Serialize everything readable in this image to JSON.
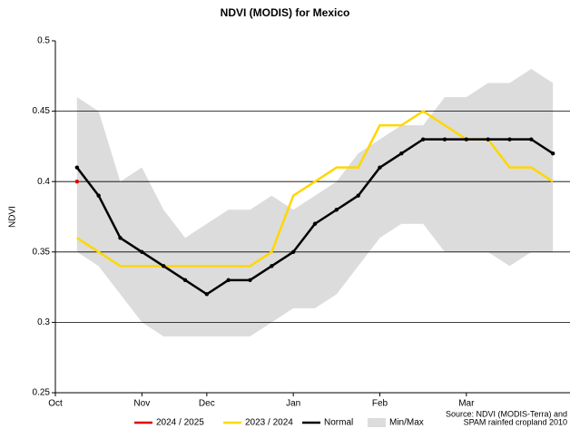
{
  "chart_data": {
    "type": "line",
    "title": "NDVI (MODIS) for Mexico",
    "y_label": "NDVI",
    "x": [
      0,
      1,
      2,
      3,
      4,
      5,
      6,
      7,
      8,
      9,
      10,
      11,
      12,
      13,
      14,
      15,
      16,
      17,
      18,
      19,
      20,
      21,
      22
    ],
    "xlim": [
      -1,
      23
    ],
    "xticks": [
      {
        "value": -1,
        "label": "Oct"
      },
      {
        "value": 3,
        "label": "Nov"
      },
      {
        "value": 6,
        "label": "Dec"
      },
      {
        "value": 10,
        "label": "Jan"
      },
      {
        "value": 14,
        "label": "Feb"
      },
      {
        "value": 18,
        "label": "Mar"
      }
    ],
    "ylim": [
      0.25,
      0.5
    ],
    "yticks": [
      0.25,
      0.3,
      0.35,
      0.4,
      0.45,
      0.5
    ],
    "grid": true,
    "band": {
      "name": "Min/Max",
      "color": "#dcdcdc",
      "max": [
        0.46,
        0.45,
        0.4,
        0.41,
        0.38,
        0.36,
        0.37,
        0.38,
        0.38,
        0.39,
        0.38,
        0.39,
        0.4,
        0.42,
        0.43,
        0.44,
        0.44,
        0.46,
        0.46,
        0.47,
        0.47,
        0.48,
        0.47
      ],
      "min": [
        0.35,
        0.34,
        0.32,
        0.3,
        0.29,
        0.29,
        0.29,
        0.29,
        0.29,
        0.3,
        0.31,
        0.31,
        0.32,
        0.34,
        0.36,
        0.37,
        0.37,
        0.35,
        0.35,
        0.35,
        0.34,
        0.35,
        0.35
      ]
    },
    "series": [
      {
        "name": "2024 / 2025",
        "color": "#e00000",
        "markers": true,
        "values": [
          0.4,
          null,
          null,
          null,
          null,
          null,
          null,
          null,
          null,
          null,
          null,
          null,
          null,
          null,
          null,
          null,
          null,
          null,
          null,
          null,
          null,
          null,
          null
        ]
      },
      {
        "name": "2023 / 2024",
        "color": "#ffd700",
        "markers": false,
        "values": [
          0.36,
          0.35,
          0.34,
          0.34,
          0.34,
          0.34,
          0.34,
          0.34,
          0.34,
          0.35,
          0.39,
          0.4,
          0.41,
          0.41,
          0.44,
          0.44,
          0.45,
          0.44,
          0.43,
          0.43,
          0.41,
          0.41,
          0.4
        ]
      },
      {
        "name": "Normal",
        "color": "#000000",
        "markers": true,
        "values": [
          0.41,
          0.39,
          0.36,
          0.35,
          0.34,
          0.33,
          0.32,
          0.33,
          0.33,
          0.34,
          0.35,
          0.37,
          0.38,
          0.39,
          0.41,
          0.42,
          0.43,
          0.43,
          0.43,
          0.43,
          0.43,
          0.43,
          0.42
        ]
      }
    ],
    "source": [
      "Source: NDVI (MODIS-Terra) and",
      "SPAM rainfed cropland 2010"
    ]
  }
}
